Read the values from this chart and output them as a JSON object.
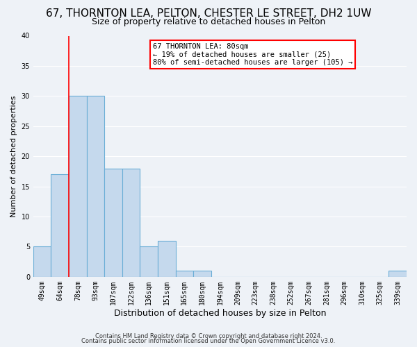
{
  "title": "67, THORNTON LEA, PELTON, CHESTER LE STREET, DH2 1UW",
  "subtitle": "Size of property relative to detached houses in Pelton",
  "xlabel": "Distribution of detached houses by size in Pelton",
  "ylabel": "Number of detached properties",
  "bin_labels": [
    "49sqm",
    "64sqm",
    "78sqm",
    "93sqm",
    "107sqm",
    "122sqm",
    "136sqm",
    "151sqm",
    "165sqm",
    "180sqm",
    "194sqm",
    "209sqm",
    "223sqm",
    "238sqm",
    "252sqm",
    "267sqm",
    "281sqm",
    "296sqm",
    "310sqm",
    "325sqm",
    "339sqm"
  ],
  "bar_values": [
    5,
    17,
    30,
    30,
    18,
    18,
    5,
    6,
    1,
    1,
    0,
    0,
    0,
    0,
    0,
    0,
    0,
    0,
    0,
    0,
    1
  ],
  "bar_color": "#c5d9ed",
  "bar_edge_color": "#6aaed6",
  "red_line_index": 2,
  "annotation_title": "67 THORNTON LEA: 80sqm",
  "annotation_line1": "← 19% of detached houses are smaller (25)",
  "annotation_line2": "80% of semi-detached houses are larger (105) →",
  "ylim": [
    0,
    40
  ],
  "yticks": [
    0,
    5,
    10,
    15,
    20,
    25,
    30,
    35,
    40
  ],
  "footer_line1": "Contains HM Land Registry data © Crown copyright and database right 2024.",
  "footer_line2": "Contains public sector information licensed under the Open Government Licence v3.0.",
  "background_color": "#eef2f7",
  "grid_color": "#ffffff",
  "title_fontsize": 11,
  "subtitle_fontsize": 9,
  "ylabel_fontsize": 8,
  "xlabel_fontsize": 9,
  "tick_fontsize": 7,
  "ann_fontsize": 7.5,
  "footer_fontsize": 6
}
